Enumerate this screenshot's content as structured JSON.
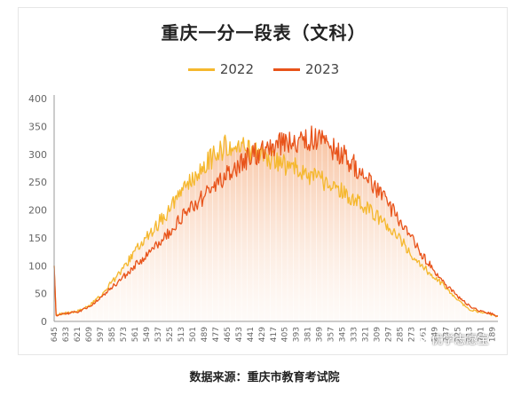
{
  "chart_data": {
    "type": "area",
    "title": "重庆一分一段表（文科）",
    "xlabel": "",
    "ylabel": "",
    "ylim": [
      0,
      400
    ],
    "yticks": [
      "0",
      "50",
      "100",
      "150",
      "200",
      "250",
      "300",
      "350",
      "400"
    ],
    "x_tick_labels": [
      "645",
      "633",
      "621",
      "609",
      "597",
      "585",
      "573",
      "561",
      "549",
      "537",
      "525",
      "513",
      "501",
      "489",
      "477",
      "465",
      "453",
      "441",
      "429",
      "417",
      "405",
      "393",
      "381",
      "369",
      "357",
      "345",
      "333",
      "321",
      "309",
      "297",
      "285",
      "273",
      "261",
      "249",
      "237",
      "225",
      "213",
      "201",
      "189"
    ],
    "x_tick_values": [
      645,
      633,
      621,
      609,
      597,
      585,
      573,
      561,
      549,
      537,
      525,
      513,
      501,
      489,
      477,
      465,
      453,
      441,
      429,
      417,
      405,
      393,
      381,
      369,
      357,
      345,
      333,
      321,
      309,
      297,
      285,
      273,
      261,
      249,
      237,
      225,
      213,
      201,
      189
    ],
    "x_range": [
      645,
      183
    ],
    "grid": false,
    "legend_position": "top-center",
    "series": [
      {
        "name": "2022",
        "color": "#F5B82E",
        "points": [
          [
            645,
            100
          ],
          [
            643,
            12
          ],
          [
            633,
            15
          ],
          [
            621,
            18
          ],
          [
            609,
            28
          ],
          [
            597,
            45
          ],
          [
            585,
            70
          ],
          [
            573,
            95
          ],
          [
            561,
            125
          ],
          [
            549,
            150
          ],
          [
            537,
            175
          ],
          [
            525,
            200
          ],
          [
            513,
            230
          ],
          [
            501,
            255
          ],
          [
            489,
            280
          ],
          [
            477,
            300
          ],
          [
            465,
            315
          ],
          [
            453,
            320
          ],
          [
            441,
            305
          ],
          [
            429,
            295
          ],
          [
            417,
            290
          ],
          [
            405,
            280
          ],
          [
            393,
            275
          ],
          [
            381,
            262
          ],
          [
            369,
            255
          ],
          [
            357,
            245
          ],
          [
            345,
            232
          ],
          [
            333,
            218
          ],
          [
            321,
            205
          ],
          [
            309,
            188
          ],
          [
            297,
            168
          ],
          [
            285,
            148
          ],
          [
            273,
            120
          ],
          [
            261,
            98
          ],
          [
            249,
            80
          ],
          [
            237,
            60
          ],
          [
            225,
            38
          ],
          [
            213,
            22
          ],
          [
            201,
            16
          ],
          [
            189,
            12
          ],
          [
            183,
            8
          ]
        ]
      },
      {
        "name": "2023",
        "color": "#E8531A",
        "points": [
          [
            645,
            100
          ],
          [
            643,
            10
          ],
          [
            633,
            14
          ],
          [
            621,
            17
          ],
          [
            609,
            25
          ],
          [
            597,
            42
          ],
          [
            585,
            60
          ],
          [
            573,
            80
          ],
          [
            561,
            100
          ],
          [
            549,
            118
          ],
          [
            537,
            140
          ],
          [
            525,
            160
          ],
          [
            513,
            185
          ],
          [
            501,
            205
          ],
          [
            489,
            225
          ],
          [
            477,
            245
          ],
          [
            465,
            265
          ],
          [
            453,
            280
          ],
          [
            441,
            295
          ],
          [
            429,
            305
          ],
          [
            417,
            318
          ],
          [
            405,
            320
          ],
          [
            393,
            325
          ],
          [
            381,
            330
          ],
          [
            369,
            325
          ],
          [
            357,
            312
          ],
          [
            345,
            300
          ],
          [
            333,
            280
          ],
          [
            321,
            260
          ],
          [
            309,
            235
          ],
          [
            297,
            210
          ],
          [
            285,
            180
          ],
          [
            273,
            148
          ],
          [
            261,
            118
          ],
          [
            249,
            90
          ],
          [
            237,
            65
          ],
          [
            225,
            45
          ],
          [
            213,
            28
          ],
          [
            201,
            18
          ],
          [
            189,
            14
          ],
          [
            183,
            8
          ]
        ]
      }
    ]
  },
  "source_text": "数据来源：重庆市教育考试院",
  "watermark_text": "优学志愿宝"
}
